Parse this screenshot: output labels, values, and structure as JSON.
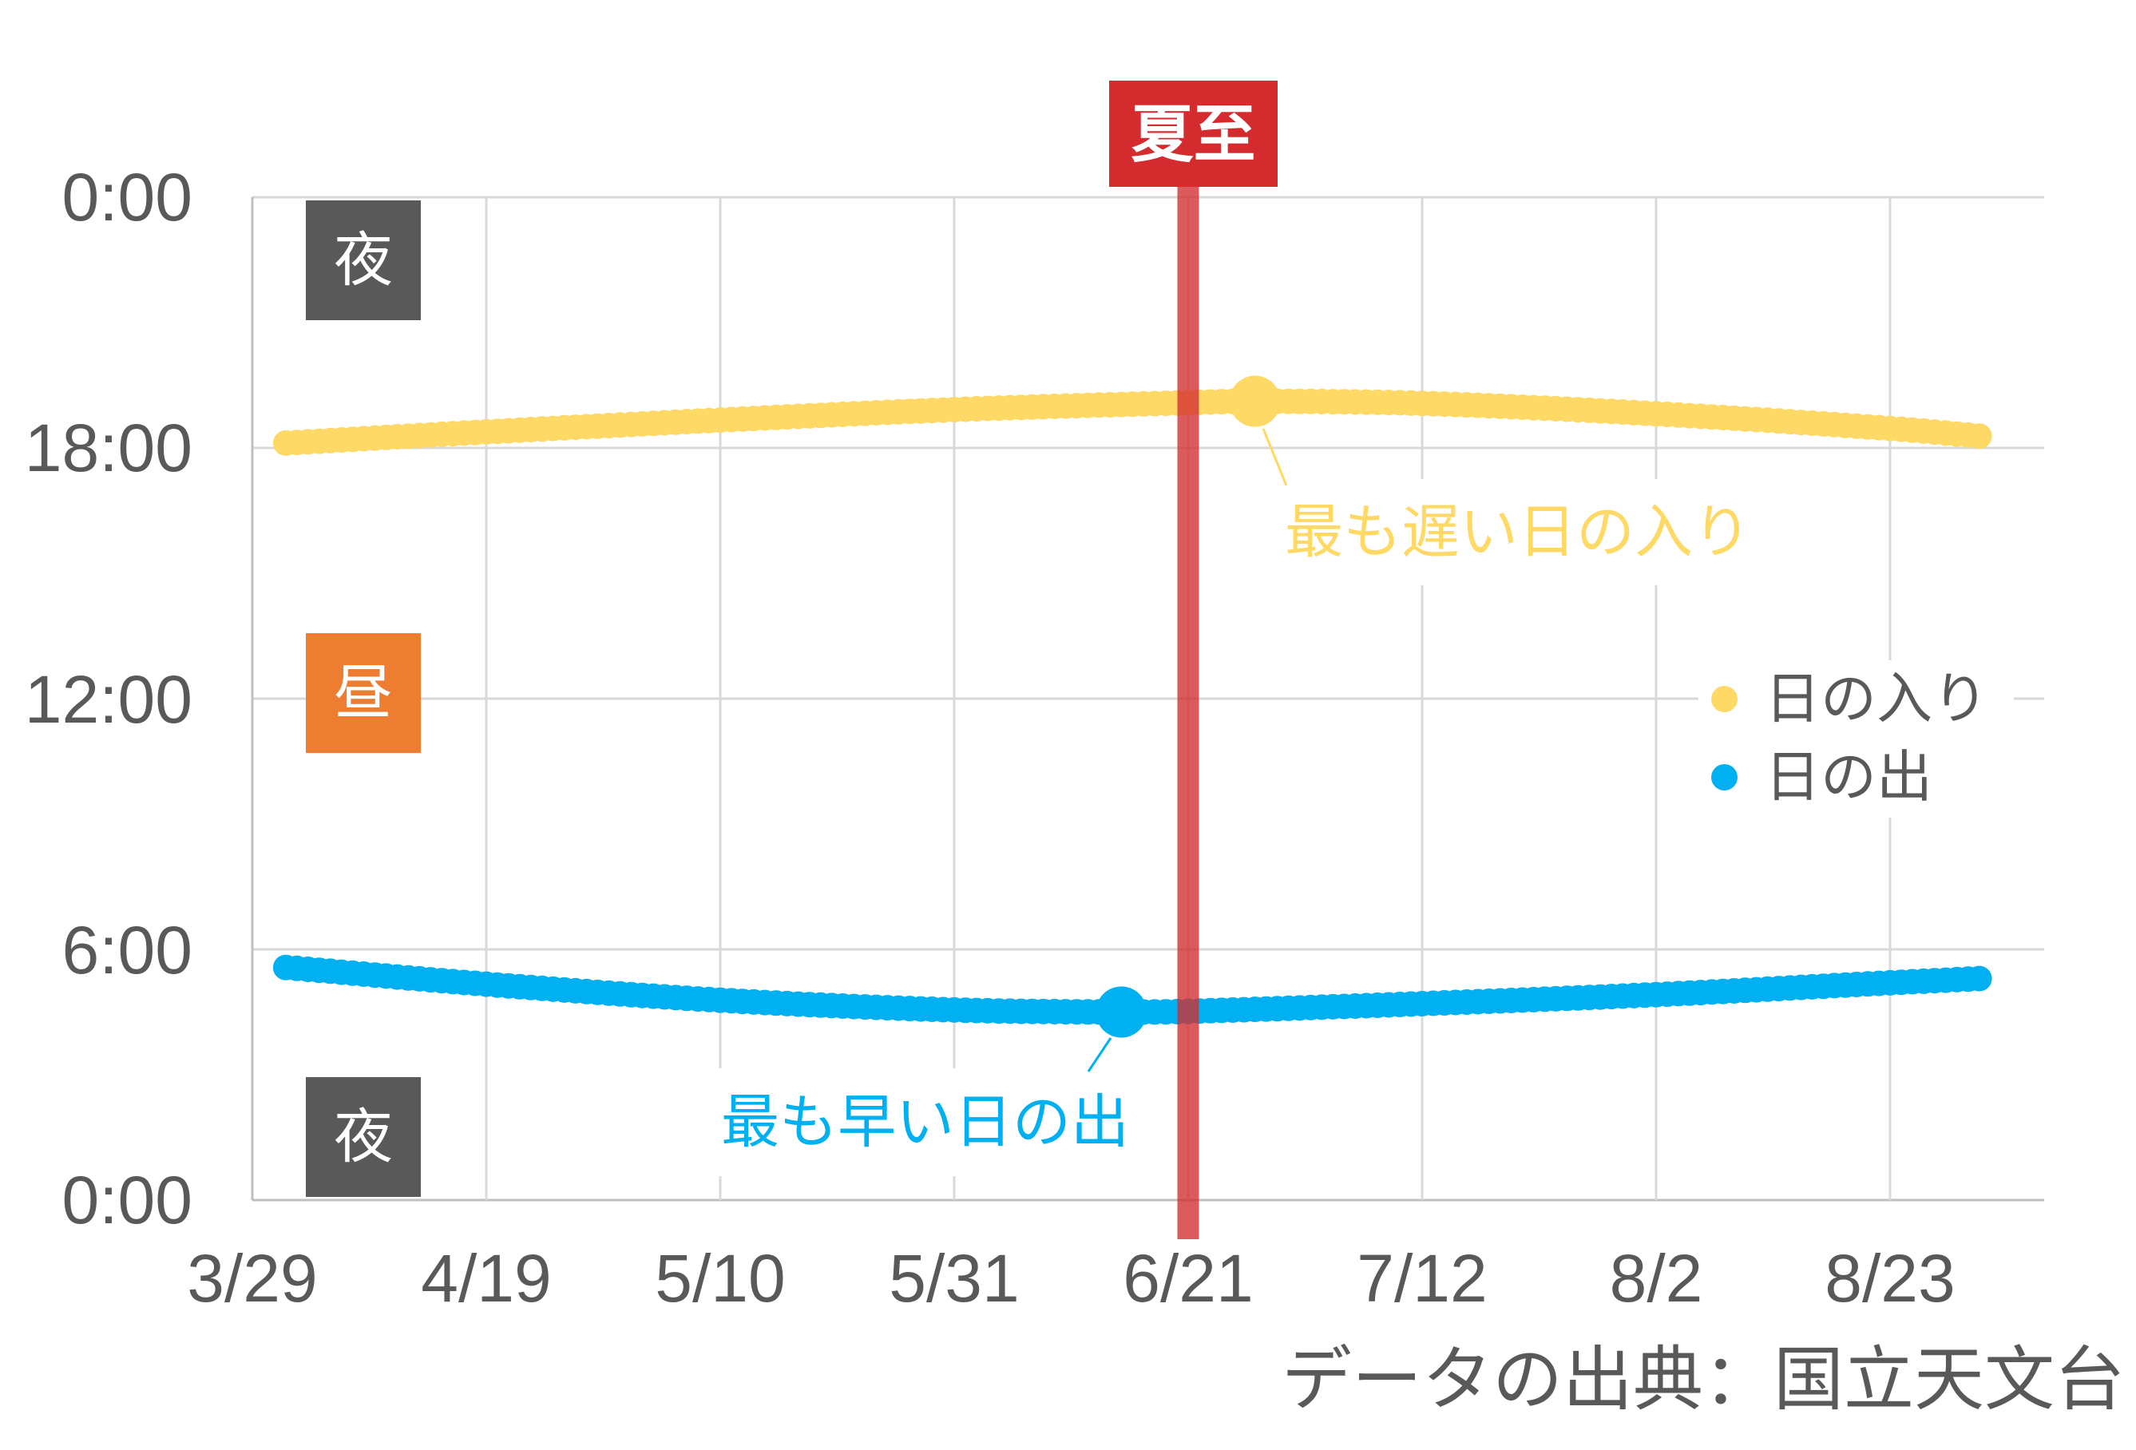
{
  "chart_data": {
    "type": "line",
    "title": "",
    "xlabel": "",
    "ylabel": "",
    "x_axis": {
      "type": "date",
      "tick_labels": [
        "3/29",
        "4/19",
        "5/10",
        "5/31",
        "6/21",
        "7/12",
        "8/2",
        "8/23"
      ],
      "tick_interval_days": 21,
      "xlim": [
        "3/29",
        "9/6"
      ]
    },
    "y_axis": {
      "unit": "time of day",
      "tick_labels": [
        "0:00",
        "18:00",
        "12:00",
        "6:00",
        "0:00"
      ],
      "tick_values_hours": [
        24,
        18,
        12,
        6,
        0
      ],
      "ylim_hours": [
        0,
        24
      ]
    },
    "grid": true,
    "legend": {
      "position": "right",
      "entries": [
        "日の入り",
        "日の出"
      ]
    },
    "series": [
      {
        "name": "日の入り",
        "color": "#FFD966",
        "marker": "circle",
        "points": [
          {
            "date": "4/1",
            "time": "18:07"
          },
          {
            "date": "4/19",
            "time": "18:23"
          },
          {
            "date": "5/10",
            "time": "18:40"
          },
          {
            "date": "5/31",
            "time": "18:55"
          },
          {
            "date": "6/21",
            "time": "19:05"
          },
          {
            "date": "6/27",
            "time": "19:07"
          },
          {
            "date": "7/12",
            "time": "19:04"
          },
          {
            "date": "8/2",
            "time": "18:49"
          },
          {
            "date": "8/23",
            "time": "18:28"
          },
          {
            "date": "8/31",
            "time": "18:17"
          }
        ]
      },
      {
        "name": "日の出",
        "color": "#00B0F0",
        "marker": "circle",
        "points": [
          {
            "date": "4/1",
            "time": "5:34"
          },
          {
            "date": "4/19",
            "time": "5:10"
          },
          {
            "date": "5/10",
            "time": "4:47"
          },
          {
            "date": "5/31",
            "time": "4:33"
          },
          {
            "date": "6/15",
            "time": "4:30"
          },
          {
            "date": "6/21",
            "time": "4:31"
          },
          {
            "date": "7/12",
            "time": "4:42"
          },
          {
            "date": "8/2",
            "time": "4:55"
          },
          {
            "date": "8/23",
            "time": "5:12"
          },
          {
            "date": "8/31",
            "time": "5:18"
          }
        ]
      }
    ],
    "annotations": {
      "latest_sunset": {
        "text": "最も遅い日の入り",
        "series": 0,
        "date": "6/27",
        "time": "19:07",
        "color": "#FFD966"
      },
      "earliest_sunrise": {
        "text": "最も早い日の出",
        "series": 1,
        "date": "6/15",
        "time": "4:30",
        "color": "#00B0F0"
      },
      "summer_solstice": {
        "text": "夏至",
        "date": "6/21",
        "color": "#D32B2E"
      }
    },
    "bands": [
      {
        "label": "夜",
        "color": "#595959"
      },
      {
        "label": "昼",
        "color": "#ED7D31"
      },
      {
        "label": "夜",
        "color": "#595959"
      }
    ],
    "colors": {
      "gridline": "#D9D9D9",
      "axis": "#BFBFBF",
      "text": "#595959"
    },
    "source_note": "データの出典：国立天文台"
  }
}
